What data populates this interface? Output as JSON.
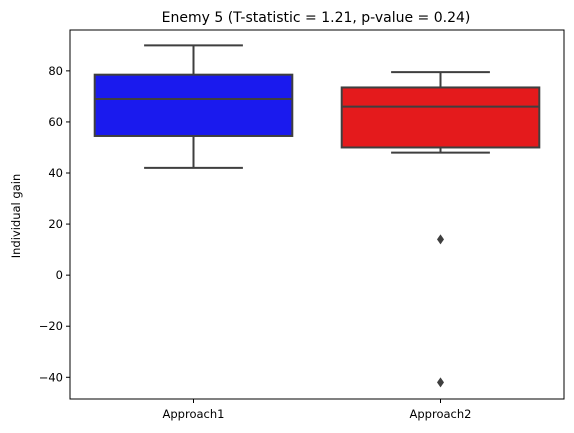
{
  "chart_data": {
    "type": "box",
    "title": "Enemy 5 (T-statistic = 1.21, p-value = 0.24)",
    "xlabel": "",
    "ylabel": "Individual gain",
    "ylim": [
      -48.5,
      96
    ],
    "yticks": [
      -40,
      -20,
      0,
      20,
      40,
      60,
      80
    ],
    "grid": false,
    "categories": [
      "Approach1",
      "Approach2"
    ],
    "boxes": [
      {
        "category": "Approach1",
        "whisker_low": 42,
        "q1": 54.5,
        "median": 69,
        "q3": 78.5,
        "whisker_high": 90,
        "outliers": [],
        "color": "#1a1aee"
      },
      {
        "category": "Approach2",
        "whisker_low": 48,
        "q1": 50,
        "median": 66,
        "q3": 73.5,
        "whisker_high": 79.5,
        "outliers": [
          14,
          -42
        ],
        "color": "#e41a1c"
      }
    ]
  }
}
